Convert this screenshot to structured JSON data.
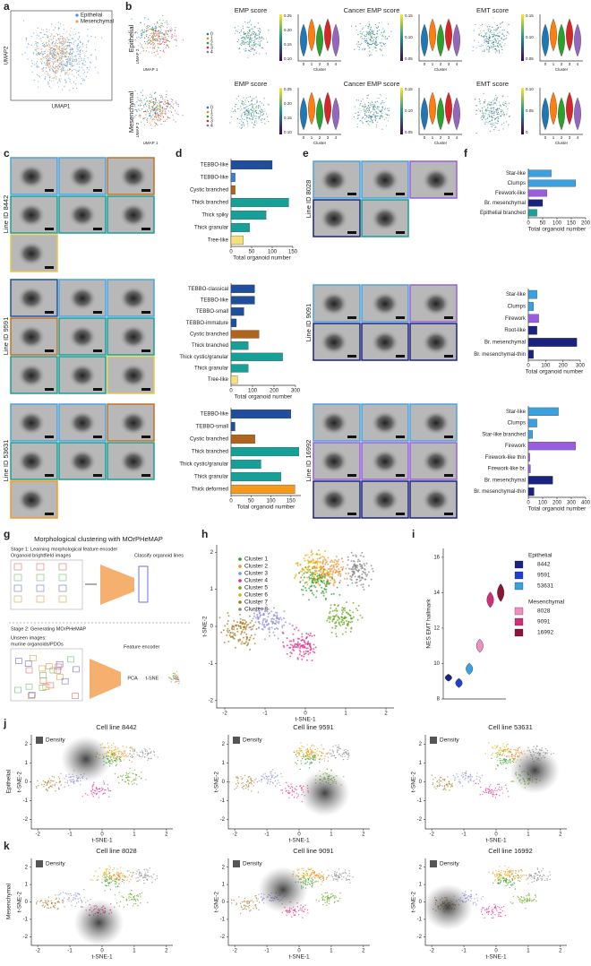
{
  "figure": {
    "letters": [
      "a",
      "b",
      "c",
      "d",
      "e",
      "f",
      "g",
      "h",
      "i",
      "j",
      "k"
    ],
    "b": {
      "rows": [
        {
          "label": "Epithelial",
          "plots": [
            {
              "title": "EMP score",
              "cbar": [
                "0.25",
                "0.20",
                "0.15",
                "0.10"
              ]
            },
            {
              "title": "Cancer EMP score",
              "cbar": [
                "0.15",
                "0.10",
                "0.05"
              ]
            },
            {
              "title": "EMT score",
              "cbar": [
                "0.15",
                "0.10",
                "0.05"
              ]
            }
          ]
        },
        {
          "label": "Mesenchymal",
          "plots": [
            {
              "title": "EMP score",
              "cbar": [
                "0.25",
                "0.20",
                "0.15",
                "0.10"
              ]
            },
            {
              "title": "Cancer EMP score",
              "cbar": [
                "0.15",
                "0.10",
                "0.05"
              ]
            },
            {
              "title": "EMT score",
              "cbar": [
                "0.10",
                "0.05",
                "0"
              ]
            }
          ]
        }
      ],
      "clusters": [
        "0",
        "1",
        "2",
        "3",
        "4"
      ],
      "cluster_label": "Cluster",
      "umap1": "UMAP 1",
      "umap2": "UMAP 2"
    },
    "c_lines": [
      "Line ID 8442",
      "Line ID 9591",
      "Line ID 53631"
    ],
    "e_lines": [
      "Line ID 8028",
      "Line ID 9091",
      "Line ID 16992"
    ],
    "g": {
      "title": "Morphological clustering with MOrPHeMAP",
      "stage1": "Stage 1: Learning morphological feature encoder",
      "images": "Organoid brightfield images",
      "classify": "Classify organoid lines",
      "stage2": "Stage 2: Generating MOrPHeMAP",
      "unseen": "Unseen images:",
      "unseen2": "murine organoids/PDOs",
      "encoder": "Feature encoder",
      "pca": "PCA",
      "tsne": "t-SNE"
    },
    "row_labels": [
      "Epithelial",
      "Mesenchymal"
    ]
  },
  "chart_data": [
    {
      "type": "scatter",
      "series": [
        {
          "name": "Epithelial",
          "color": "#4a90d9"
        },
        {
          "name": "Mesenchymal",
          "color": "#f0a050"
        }
      ],
      "xlabel": "UMAP1",
      "ylabel": "UMAP2"
    },
    {
      "type": "bar",
      "categories": [
        "TEBBO-like",
        "TEBBO-like",
        "Cystic branched",
        "Thick branched",
        "Thick spiky",
        "Thick granular",
        "Tree-like"
      ],
      "values": [
        100,
        10,
        10,
        140,
        85,
        45,
        30
      ],
      "colors": [
        "#1f4e9c",
        "#3b7fd0",
        "#b0651c",
        "#17a097",
        "#17a097",
        "#17a097",
        "#f3e27a"
      ],
      "xlim": [
        0,
        150
      ],
      "xticks": [
        0,
        50,
        100,
        150
      ],
      "xlabel": "Total organoid number"
    },
    {
      "type": "bar",
      "categories": [
        "TEBBO-classical",
        "TEBBO-like",
        "TEBBO-small",
        "TEBBO-immature",
        "Cystic branched",
        "Thick branched",
        "Thick cystic/granular",
        "Thick granular",
        "Tree-like"
      ],
      "values": [
        110,
        110,
        60,
        25,
        130,
        80,
        240,
        80,
        30
      ],
      "colors": [
        "#1f4e9c",
        "#1f4e9c",
        "#1f4e9c",
        "#1f4e9c",
        "#b0651c",
        "#17a097",
        "#17a097",
        "#17a097",
        "#f3e27a"
      ],
      "xlim": [
        0,
        300
      ],
      "xticks": [
        0,
        100,
        200,
        300
      ],
      "xlabel": "Total organoid number"
    },
    {
      "type": "bar",
      "categories": [
        "TEBBO-like",
        "TEBBO-small",
        "Cystic branched",
        "Thick branched",
        "Thick cystic/granular",
        "Thick granular",
        "Thick deformed"
      ],
      "values": [
        150,
        10,
        60,
        170,
        75,
        125,
        160
      ],
      "colors": [
        "#1f4e9c",
        "#1f4e9c",
        "#b0651c",
        "#17a097",
        "#17a097",
        "#17a097",
        "#f59a1c"
      ],
      "xlim": [
        0,
        175
      ],
      "xticks": [
        0,
        50,
        100,
        150
      ],
      "xlabel": "Total organoid number"
    },
    {
      "type": "bar",
      "categories": [
        "Star-like",
        "Clumps",
        "Firework-like",
        "Br. mesenchymal",
        "Epithelial branched"
      ],
      "values": [
        80,
        165,
        65,
        50,
        30
      ],
      "colors": [
        "#3aa0e0",
        "#3aa0e0",
        "#9b5de0",
        "#1a237e",
        "#17a097"
      ],
      "xlim": [
        0,
        200
      ],
      "xticks": [
        0,
        50,
        100,
        150,
        200
      ],
      "xlabel": "Total organoid number"
    },
    {
      "type": "bar",
      "categories": [
        "Star-like",
        "Clumps",
        "Firework",
        "Root-like",
        "Br. mesenchymal",
        "Br. mesenchymal-thin"
      ],
      "values": [
        50,
        30,
        60,
        50,
        280,
        30
      ],
      "colors": [
        "#3aa0e0",
        "#3aa0e0",
        "#9b5de0",
        "#1a237e",
        "#1a237e",
        "#1a237e"
      ],
      "xlim": [
        0,
        300
      ],
      "xticks": [
        0,
        100,
        200,
        300
      ],
      "xlabel": "Total organoid number"
    },
    {
      "type": "bar",
      "categories": [
        "Star-like",
        "Clumps",
        "Star-like branched",
        "Firework",
        "Firework-like thin",
        "Firework-like br.",
        "Br. mesenchymal",
        "Br. mesenchymal-thin"
      ],
      "values": [
        210,
        60,
        30,
        330,
        10,
        15,
        170,
        40
      ],
      "colors": [
        "#3aa0e0",
        "#3aa0e0",
        "#3aa0e0",
        "#9b5de0",
        "#9b5de0",
        "#9b5de0",
        "#1a237e",
        "#1a237e"
      ],
      "xlim": [
        0,
        400
      ],
      "xticks": [
        0,
        100,
        200,
        300,
        400
      ],
      "xlabel": "Total organoid number"
    },
    {
      "type": "scatter",
      "series": [
        {
          "name": "Cluster 1",
          "color": "#2ca02c"
        },
        {
          "name": "Cluster 2",
          "color": "#f28e2b"
        },
        {
          "name": "Cluster 3",
          "color": "#8c8ce0"
        },
        {
          "name": "Cluster 4",
          "color": "#e7298a"
        },
        {
          "name": "Cluster 5",
          "color": "#66a61e"
        },
        {
          "name": "Cluster 6",
          "color": "#e6ab02"
        },
        {
          "name": "Cluster 7",
          "color": "#a6761d"
        },
        {
          "name": "Cluster 8",
          "color": "#888888"
        }
      ],
      "xlabel": "t-SNE-1",
      "ylabel": "t-SNE-2",
      "xlim": [
        -2.2,
        2.2
      ],
      "ylim": [
        -2.2,
        2.2
      ],
      "xticks": [
        -2,
        -1,
        0,
        1,
        2
      ],
      "yticks": [
        -2,
        -1,
        0,
        1,
        2
      ]
    },
    {
      "type": "violin",
      "categories": [
        "8442",
        "9591",
        "53631",
        "8028",
        "9091",
        "16992"
      ],
      "values": [
        9.2,
        8.9,
        9.7,
        11,
        13.6,
        14
      ],
      "colors": [
        "#1a237e",
        "#1f3fcf",
        "#3aa0e0",
        "#f090c0",
        "#d0307a",
        "#8a1538"
      ],
      "groups": [
        {
          "name": "Epithelial",
          "members": [
            0,
            1,
            2
          ]
        },
        {
          "name": "Mesenchymal",
          "members": [
            3,
            4,
            5
          ]
        }
      ],
      "ylabel": "NES EMT hallmark",
      "ylim": [
        8,
        16.5
      ],
      "yticks": [
        8,
        10,
        12,
        14,
        16
      ]
    },
    {
      "type": "density",
      "title": "Cell line 8442",
      "legend": "Density",
      "xlabel": "t-SNE-1",
      "ylabel": "t-SNE-2",
      "xlim": [
        -2.2,
        2.2
      ],
      "ylim": [
        -2.5,
        2.5
      ],
      "xticks": [
        -2,
        -1,
        0,
        1,
        2
      ],
      "yticks": [
        -2,
        -1,
        0,
        1,
        2
      ]
    },
    {
      "type": "density",
      "title": "Cell line 9591",
      "legend": "Density",
      "xlabel": "t-SNE-1",
      "ylabel": "t-SNE-2",
      "xlim": [
        -2.2,
        2.2
      ],
      "ylim": [
        -2.5,
        2.5
      ],
      "xticks": [
        -2,
        -1,
        0,
        1,
        2
      ],
      "yticks": [
        -2,
        -1,
        0,
        1,
        2
      ]
    },
    {
      "type": "density",
      "title": "Cell line 53631",
      "legend": "Density",
      "xlabel": "t-SNE-1",
      "ylabel": "t-SNE-2",
      "xlim": [
        -2.2,
        2.2
      ],
      "ylim": [
        -2.5,
        2.5
      ],
      "xticks": [
        -2,
        -1,
        0,
        1,
        2
      ],
      "yticks": [
        -2,
        -1,
        0,
        1,
        2
      ]
    },
    {
      "type": "density",
      "title": "Cell line 8028",
      "legend": "Density",
      "xlabel": "t-SNE-1",
      "ylabel": "t-SNE-2",
      "xlim": [
        -2.2,
        2.2
      ],
      "ylim": [
        -2.5,
        2.5
      ],
      "xticks": [
        -2,
        -1,
        0,
        1,
        2
      ],
      "yticks": [
        -2,
        -1,
        0,
        1,
        2
      ]
    },
    {
      "type": "density",
      "title": "Cell line 9091",
      "legend": "Density",
      "xlabel": "t-SNE-1",
      "ylabel": "t-SNE-2",
      "xlim": [
        -2.2,
        2.2
      ],
      "ylim": [
        -2.5,
        2.5
      ],
      "xticks": [
        -2,
        -1,
        0,
        1,
        2
      ],
      "yticks": [
        -2,
        -1,
        0,
        1,
        2
      ]
    },
    {
      "type": "density",
      "title": "Cell line 16992",
      "legend": "Density",
      "xlabel": "t-SNE-1",
      "ylabel": "t-SNE-2",
      "xlim": [
        -2.2,
        2.2
      ],
      "ylim": [
        -2.5,
        2.5
      ],
      "xticks": [
        -2,
        -1,
        0,
        1,
        2
      ],
      "yticks": [
        -2,
        -1,
        0,
        1,
        2
      ]
    }
  ]
}
